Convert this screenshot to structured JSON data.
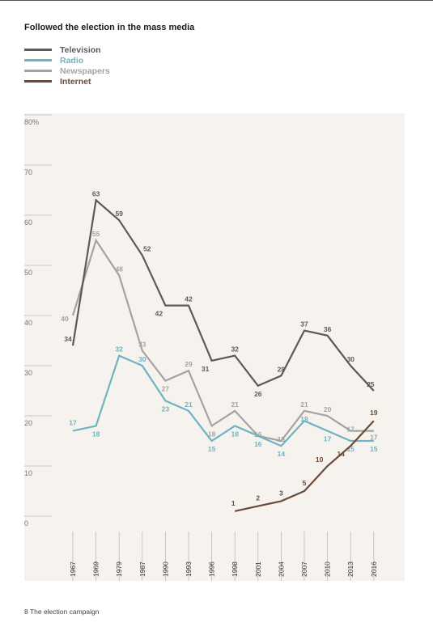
{
  "page_title": "Followed the election in the mass media",
  "footer": "8  The election campaign",
  "colors": {
    "Television": "#5a5a5c",
    "Radio": "#6fb3c2",
    "Newspapers": "#a3a3a3",
    "Internet": "#6b4a36",
    "plot_bg": "#f6f3ef"
  },
  "chart_data": {
    "type": "line",
    "title": "Followed the election in the mass media",
    "xlabel": "",
    "ylabel": "",
    "ylim": [
      0,
      80
    ],
    "yticks": [
      "80%",
      "70",
      "60",
      "50",
      "40",
      "30",
      "20",
      "10",
      "0"
    ],
    "categories": [
      "1967",
      "1969",
      "1979",
      "1987",
      "1990",
      "1993",
      "1996",
      "1998",
      "2001",
      "2004",
      "2007",
      "2010",
      "2013",
      "2016"
    ],
    "legend_position": "top-left",
    "series": [
      {
        "name": "Television",
        "values": [
          34,
          63,
          59,
          52,
          42,
          42,
          31,
          32,
          26,
          28,
          37,
          36,
          30,
          25
        ]
      },
      {
        "name": "Radio",
        "values": [
          17,
          18,
          32,
          30,
          23,
          21,
          15,
          18,
          16,
          14,
          19,
          17,
          15,
          15
        ]
      },
      {
        "name": "Newspapers",
        "values": [
          40,
          55,
          48,
          33,
          27,
          29,
          18,
          21,
          16,
          15,
          21,
          20,
          17,
          17
        ]
      },
      {
        "name": "Internet",
        "values": [
          null,
          null,
          null,
          null,
          null,
          null,
          null,
          1,
          2,
          3,
          5,
          10,
          14,
          19
        ]
      }
    ]
  }
}
